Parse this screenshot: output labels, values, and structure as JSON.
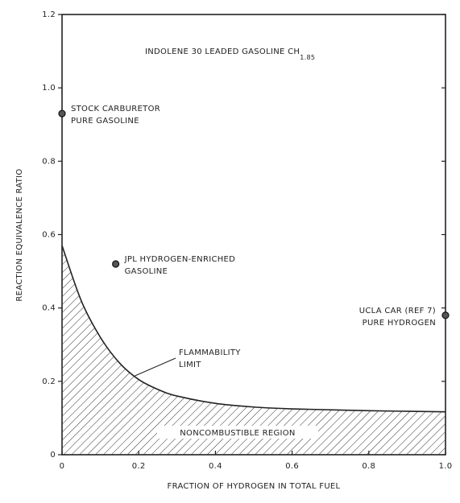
{
  "chart_data": {
    "type": "line",
    "title": "INDOLENE 30 LEADED GASOLINE CH",
    "title_subscript": "1.85",
    "x_label": "FRACTION OF HYDROGEN IN TOTAL FUEL",
    "y_label": "REACTION EQUIVALENCE RATIO",
    "x": [
      0,
      0.05,
      0.1,
      0.15,
      0.2,
      0.25,
      0.3,
      0.4,
      0.5,
      0.6,
      0.8,
      1.0
    ],
    "series": [
      {
        "values": [
          0.57,
          0.42,
          0.32,
          0.25,
          0.205,
          0.178,
          0.16,
          0.14,
          0.13,
          0.125,
          0.12,
          0.117
        ],
        "color": "#222",
        "hatched": true
      }
    ],
    "points": [
      {
        "x": 0,
        "y": 0.93,
        "label": [
          "STOCK CARBURETOR",
          "PURE GASOLINE"
        ]
      },
      {
        "x": 0.14,
        "y": 0.52,
        "label": [
          "JPL HYDROGEN-ENRICHED",
          "GASOLINE"
        ]
      },
      {
        "x": 1.0,
        "y": 0.38,
        "label": [
          "UCLA CAR (REF 7)",
          "PURE HYDROGEN"
        ]
      }
    ],
    "annotations": [
      {
        "text": [
          "FLAMMABILITY",
          "LIMIT"
        ]
      },
      {
        "text": "NONCOMBUSTIBLE REGION"
      }
    ],
    "xlim": [
      0,
      1.0
    ],
    "ylim": [
      0,
      1.2
    ],
    "xticks": [
      0,
      {
        "value": 0.2,
        "label": "0.2"
      },
      {
        "value": 0.4,
        "label": "0.4"
      },
      {
        "value": 0.6,
        "label": "0.6"
      },
      {
        "value": 0.8,
        "label": "0.8"
      },
      {
        "value": 1,
        "label": "1.0"
      }
    ],
    "yticks": [
      0,
      {
        "value": 0.2,
        "label": "0.2"
      },
      {
        "value": 0.4,
        "label": "0.4"
      },
      {
        "value": 0.6,
        "label": "0.6"
      },
      {
        "value": 0.8,
        "label": "0.8"
      },
      {
        "value": 1,
        "label": "1.0"
      },
      {
        "value": 1.2,
        "label": "1.2"
      }
    ],
    "grid": false
  }
}
